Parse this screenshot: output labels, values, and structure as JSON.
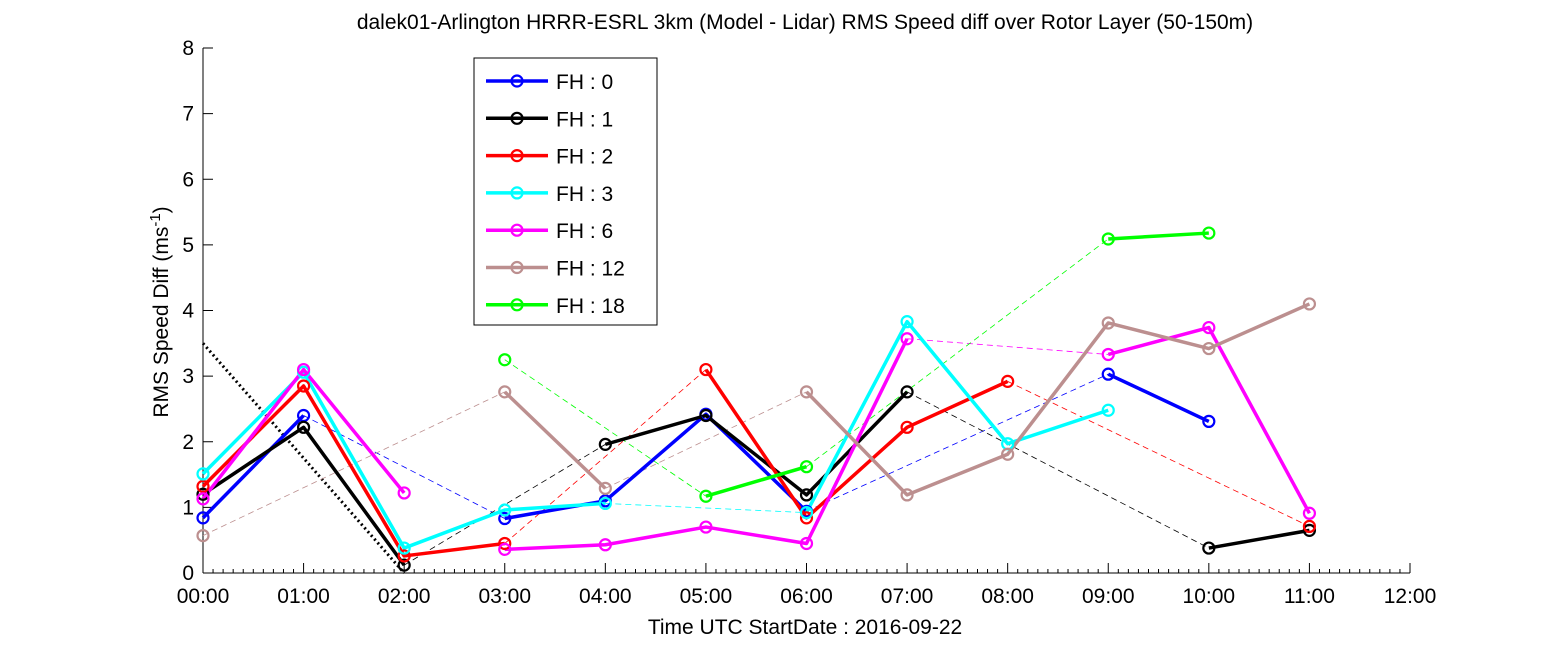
{
  "chart_data": {
    "type": "line",
    "title": "dalek01-Arlington HRRR-ESRL 3km (Model - Lidar) RMS Speed diff over Rotor Layer (50-150m)",
    "xlabel": "Time UTC    StartDate : 2016-09-22",
    "ylabel_main": "RMS Speed Diff (ms",
    "ylabel_sup": "-1",
    "ylabel_tail": ")",
    "x_ticks": [
      "00:00",
      "01:00",
      "02:00",
      "03:00",
      "04:00",
      "05:00",
      "06:00",
      "07:00",
      "08:00",
      "09:00",
      "10:00",
      "11:00",
      "12:00"
    ],
    "y_ticks": [
      "0",
      "1",
      "2",
      "3",
      "4",
      "5",
      "6",
      "7",
      "8"
    ],
    "xlim": [
      0,
      12
    ],
    "ylim": [
      0,
      8
    ],
    "legend_position": "top-left (inside)",
    "series": [
      {
        "name": "FH : 0",
        "color": "#0000ff",
        "segments": [
          [
            [
              0,
              0.84
            ],
            [
              1,
              2.4
            ]
          ],
          [
            [
              3,
              0.83
            ],
            [
              4,
              1.1
            ],
            [
              5,
              2.42
            ],
            [
              6,
              0.94
            ]
          ],
          [
            [
              9,
              3.03
            ],
            [
              10,
              2.31
            ]
          ]
        ],
        "gap_links": [
          [
            [
              1,
              2.4
            ],
            [
              3,
              0.83
            ]
          ],
          [
            [
              6,
              0.94
            ],
            [
              9,
              3.03
            ]
          ]
        ]
      },
      {
        "name": "FH : 1",
        "color": "#000000",
        "segments": [
          [
            [
              0,
              1.2
            ],
            [
              1,
              2.22
            ],
            [
              2,
              0.12
            ]
          ],
          [
            [
              4,
              1.96
            ],
            [
              5,
              2.4
            ],
            [
              6,
              1.19
            ],
            [
              7,
              2.76
            ]
          ],
          [
            [
              10,
              0.38
            ],
            [
              11,
              0.65
            ]
          ]
        ],
        "gap_links": [
          [
            [
              2,
              0.12
            ],
            [
              4,
              1.96
            ]
          ],
          [
            [
              7,
              2.76
            ],
            [
              10,
              0.38
            ]
          ]
        ]
      },
      {
        "name": "FH : 2",
        "color": "#ff0000",
        "segments": [
          [
            [
              0,
              1.32
            ],
            [
              1,
              2.85
            ],
            [
              2,
              0.26
            ],
            [
              3,
              0.45
            ]
          ],
          [
            [
              5,
              3.1
            ],
            [
              6,
              0.84
            ],
            [
              7,
              2.22
            ],
            [
              8,
              2.92
            ]
          ],
          [
            [
              11,
              0.71
            ]
          ]
        ],
        "gap_links": [
          [
            [
              3,
              0.45
            ],
            [
              5,
              3.1
            ]
          ],
          [
            [
              8,
              2.92
            ],
            [
              11,
              0.71
            ]
          ]
        ]
      },
      {
        "name": "FH : 3",
        "color": "#00ffff",
        "segments": [
          [
            [
              0,
              1.51
            ],
            [
              1,
              3.06
            ],
            [
              2,
              0.38
            ],
            [
              3,
              0.96
            ],
            [
              4,
              1.06
            ]
          ],
          [
            [
              6,
              0.92
            ],
            [
              7,
              3.83
            ],
            [
              8,
              1.97
            ],
            [
              9,
              2.48
            ]
          ]
        ],
        "gap_links": [
          [
            [
              4,
              1.06
            ],
            [
              6,
              0.92
            ]
          ]
        ]
      },
      {
        "name": "FH : 6",
        "color": "#ff00ff",
        "segments": [
          [
            [
              0,
              1.13
            ],
            [
              1,
              3.1
            ],
            [
              2,
              1.22
            ]
          ],
          [
            [
              3,
              0.36
            ],
            [
              4,
              0.43
            ],
            [
              5,
              0.7
            ],
            [
              6,
              0.45
            ],
            [
              7,
              3.57
            ]
          ],
          [
            [
              9,
              3.33
            ],
            [
              10,
              3.74
            ],
            [
              11,
              0.91
            ]
          ]
        ],
        "gap_links": [
          [
            [
              7,
              3.57
            ],
            [
              9,
              3.33
            ]
          ]
        ]
      },
      {
        "name": "FH : 12",
        "color": "#bc8f8f",
        "segments": [
          [
            [
              0,
              0.57
            ]
          ],
          [
            [
              3,
              2.76
            ],
            [
              4,
              1.29
            ]
          ],
          [
            [
              6,
              2.76
            ],
            [
              7,
              1.19
            ],
            [
              8,
              1.81
            ],
            [
              9,
              3.81
            ],
            [
              10,
              3.42
            ],
            [
              11,
              4.1
            ]
          ]
        ],
        "gap_links": [
          [
            [
              0,
              0.57
            ],
            [
              3,
              2.76
            ]
          ],
          [
            [
              4,
              1.29
            ],
            [
              6,
              2.76
            ]
          ]
        ]
      },
      {
        "name": "FH : 18",
        "color": "#00ff00",
        "segments": [
          [
            [
              3,
              3.25
            ]
          ],
          [
            [
              5,
              1.17
            ],
            [
              6,
              1.62
            ]
          ],
          [
            [
              9,
              5.09
            ],
            [
              10,
              5.18
            ]
          ]
        ],
        "gap_links": [
          [
            [
              3,
              3.25
            ],
            [
              5,
              1.17
            ]
          ],
          [
            [
              6,
              1.62
            ],
            [
              9,
              5.09
            ]
          ]
        ]
      }
    ],
    "reference_line": {
      "color": "#000000",
      "style": "dotted",
      "points": [
        [
          0,
          3.5
        ],
        [
          2,
          0
        ]
      ]
    }
  }
}
